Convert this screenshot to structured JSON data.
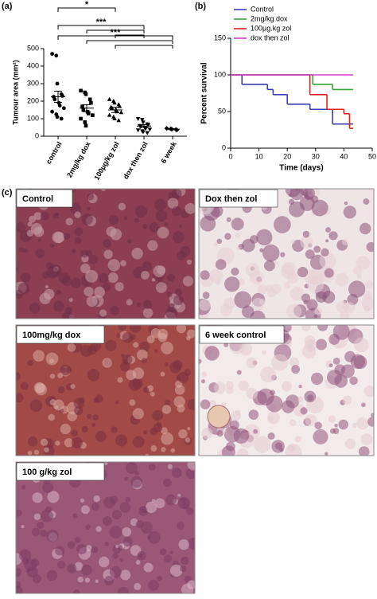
{
  "chart_data": [
    {
      "type": "dotplot",
      "panel_label": "(a)",
      "ylabel": "Tumour area (mm²)",
      "categories": [
        "control",
        "2mg/kg dox",
        "100µg/kg zol",
        "dox then zol",
        "6 week"
      ],
      "markers": [
        "circle",
        "square",
        "triangle-up",
        "triangle-down",
        "diamond"
      ],
      "color": "#000000",
      "points": [
        [
          470,
          460,
          300,
          240,
          230,
          225,
          210,
          190,
          175,
          160,
          140,
          125,
          110,
          100
        ],
        [
          260,
          250,
          240,
          210,
          190,
          170,
          150,
          140,
          130,
          120,
          100,
          80,
          60
        ],
        [
          210,
          200,
          190,
          180,
          170,
          165,
          160,
          150,
          140,
          135,
          120,
          110,
          100,
          90
        ],
        [
          100,
          95,
          80,
          70,
          65,
          60,
          55,
          50,
          45,
          40,
          35,
          30,
          25,
          20
        ],
        [
          45,
          42,
          40,
          38,
          36
        ]
      ],
      "means": [
        225,
        160,
        150,
        58,
        40
      ],
      "sems": [
        32,
        20,
        15,
        8,
        3
      ],
      "ylim": [
        0,
        500
      ],
      "yticks": [
        0,
        100,
        200,
        300,
        400,
        500
      ],
      "annotations": [
        "*",
        "***",
        "***"
      ]
    },
    {
      "type": "step",
      "panel_label": "(b)",
      "xlabel": "Time (days)",
      "ylabel": "Percent survival",
      "xlim": [
        0,
        50
      ],
      "xticks": [
        0,
        10,
        20,
        30,
        40,
        50
      ],
      "ylim": [
        0,
        150
      ],
      "yticks": [
        0,
        50,
        100,
        150
      ],
      "legend": "upper left",
      "series": [
        {
          "name": "Control",
          "color": "#3a3fb0",
          "x": [
            0,
            4,
            13,
            15,
            20,
            28,
            36,
            43
          ],
          "values": [
            100,
            87,
            80,
            73,
            60,
            53,
            33,
            33
          ]
        },
        {
          "name": "2mg/kg dox",
          "color": "#3aa53a",
          "x": [
            0,
            29,
            36,
            43
          ],
          "values": [
            100,
            87,
            80,
            80
          ]
        },
        {
          "name": "100µg.kg zol",
          "color": "#e02020",
          "x": [
            0,
            28,
            34,
            40,
            42,
            43
          ],
          "values": [
            100,
            73,
            53,
            47,
            27,
            27
          ]
        },
        {
          "name": "dox then zol",
          "color": "#d040c8",
          "x": [
            0,
            43
          ],
          "values": [
            100,
            100
          ]
        }
      ]
    }
  ],
  "panel_c": {
    "label": "(c)",
    "images": [
      "Control",
      "Dox then zol",
      "100mg/kg dox",
      "6 week control",
      "100  g/kg zol"
    ]
  }
}
